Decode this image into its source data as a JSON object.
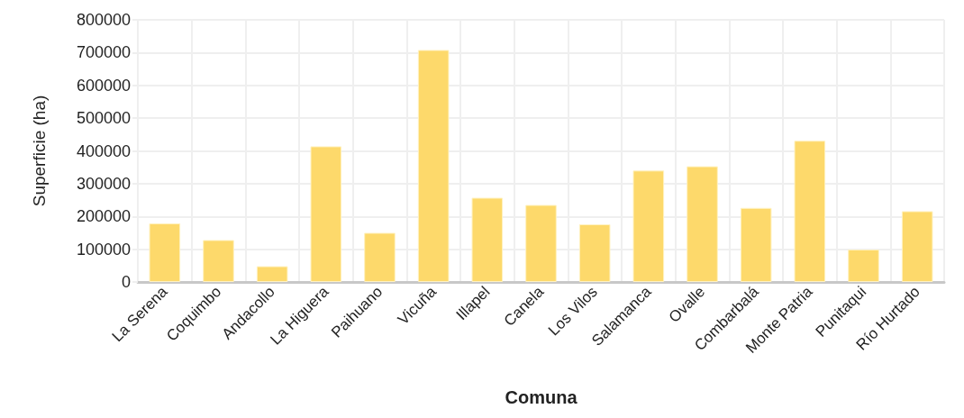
{
  "chart_data": {
    "type": "bar",
    "xlabel": "Comuna",
    "ylabel": "Superficie (ha)",
    "categories": [
      "La Serena",
      "Coquimbo",
      "Andacollo",
      "La Higuera",
      "Paihuano",
      "Vicuña",
      "Illapel",
      "Canela",
      "Los Vilos",
      "Salamanca",
      "Ovalle",
      "Combarbalá",
      "Monte Patria",
      "Punitaqui",
      "Río Hurtado"
    ],
    "values": [
      179000,
      128000,
      48000,
      414000,
      150000,
      708000,
      257000,
      235000,
      176000,
      340000,
      353000,
      226000,
      431000,
      99000,
      216000
    ],
    "color": "#fdd96b",
    "ylim": [
      0,
      800000
    ],
    "yticks": [
      0,
      100000,
      200000,
      300000,
      400000,
      500000,
      600000,
      700000,
      800000
    ],
    "grid": true
  }
}
